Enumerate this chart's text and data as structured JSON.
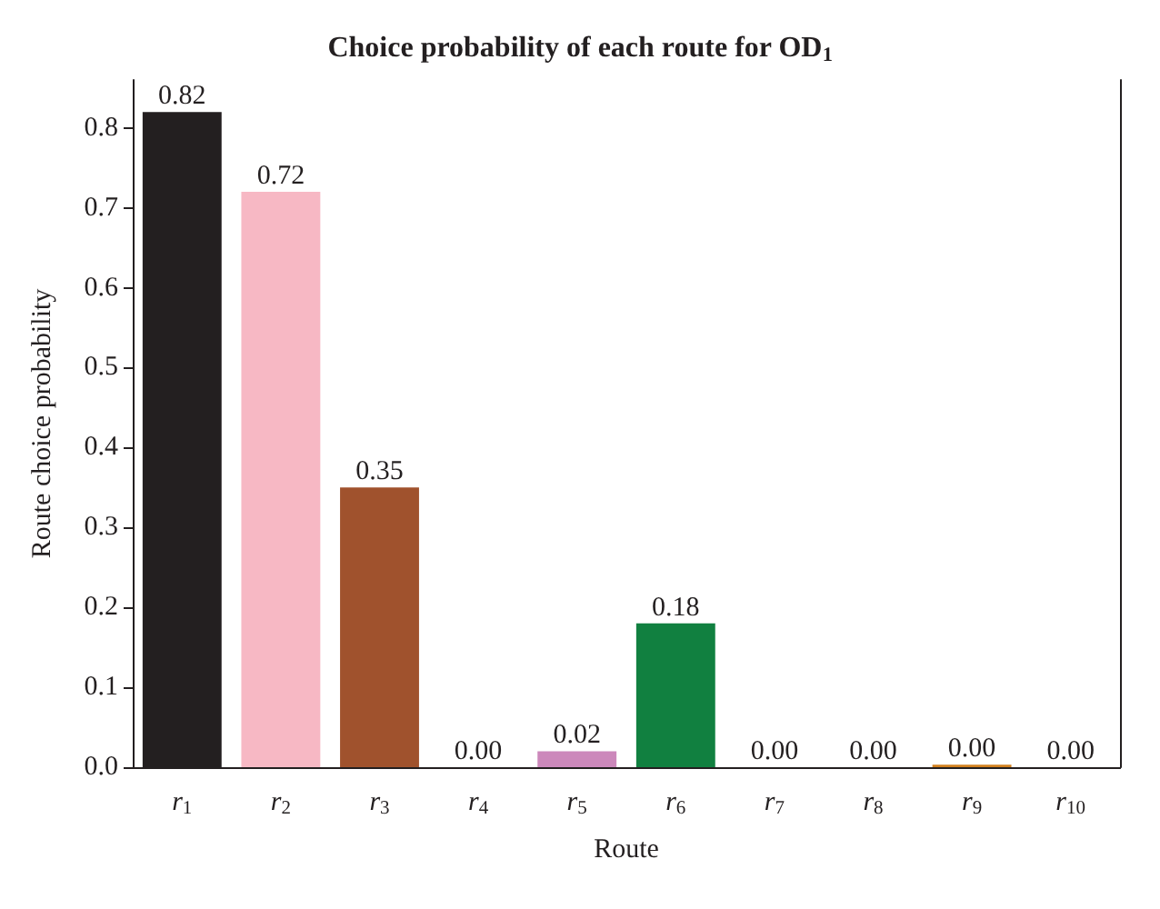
{
  "chart_data": {
    "type": "bar",
    "title": "Choice probability of each route for OD$_{1}$",
    "xlabel": "Route",
    "ylabel": "Route choice probability",
    "categories": [
      "r$_{1}$",
      "r$_{2}$",
      "r$_{3}$",
      "r$_{4}$",
      "r$_{5}$",
      "r$_{6}$",
      "r$_{7}$",
      "r$_{8}$",
      "r$_{9}$",
      "r$_{10}$"
    ],
    "values": [
      0.82,
      0.72,
      0.35,
      0,
      0.02,
      0.18,
      0,
      0,
      0.003,
      0
    ],
    "value_labels": [
      "0.82",
      "0.72",
      "0.35",
      "0.00",
      "0.02",
      "0.18",
      "0.00",
      "0.00",
      "0.00",
      "0.00"
    ],
    "colors": [
      "#231f20",
      "#f7b8c4",
      "#a0522d",
      "#8b1a1a",
      "#cc88bb",
      "#118040",
      "#8b3a2a",
      "#6b6b2a",
      "#d2801e",
      "#7f7f7f"
    ],
    "ylim": [
      0,
      0.86
    ],
    "yticks": [
      {
        "value": 0,
        "label": "0.0"
      },
      {
        "value": 0.1,
        "label": "0.1"
      },
      {
        "value": 0.2,
        "label": "0.2"
      },
      {
        "value": 0.3,
        "label": "0.3"
      },
      {
        "value": 0.4,
        "label": "0.4"
      },
      {
        "value": 0.5,
        "label": "0.5"
      },
      {
        "value": 0.6,
        "label": "0.6"
      },
      {
        "value": 0.7,
        "label": "0.7"
      },
      {
        "value": 0.8,
        "label": "0.8"
      }
    ],
    "grid": false
  }
}
